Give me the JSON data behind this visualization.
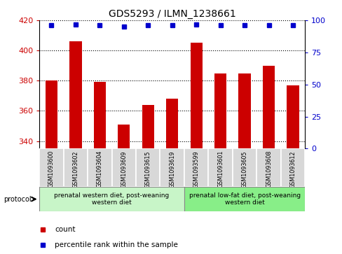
{
  "title": "GDS5293 / ILMN_1238661",
  "samples": [
    "GSM1093600",
    "GSM1093602",
    "GSM1093604",
    "GSM1093609",
    "GSM1093615",
    "GSM1093619",
    "GSM1093599",
    "GSM1093601",
    "GSM1093605",
    "GSM1093608",
    "GSM1093612"
  ],
  "counts": [
    380,
    406,
    379,
    351,
    364,
    368,
    405,
    385,
    385,
    390,
    377
  ],
  "percentile_ranks": [
    96,
    97,
    96,
    95,
    96,
    96,
    97,
    96,
    96,
    96,
    96
  ],
  "ylim_left": [
    335,
    420
  ],
  "ylim_right": [
    0,
    100
  ],
  "yticks_left": [
    340,
    360,
    380,
    400,
    420
  ],
  "yticks_right": [
    0,
    25,
    50,
    75,
    100
  ],
  "bar_color": "#cc0000",
  "dot_color": "#0000cc",
  "group1_label": "prenatal western diet, post-weaning\nwestern diet",
  "group2_label": "prenatal low-fat diet, post-weaning\nwestern diet",
  "group1_color": "#c8f5c8",
  "group2_color": "#88ee88",
  "group1_count": 6,
  "group2_count": 5,
  "protocol_label": "protocol",
  "legend_count_label": "count",
  "legend_percentile_label": "percentile rank within the sample"
}
